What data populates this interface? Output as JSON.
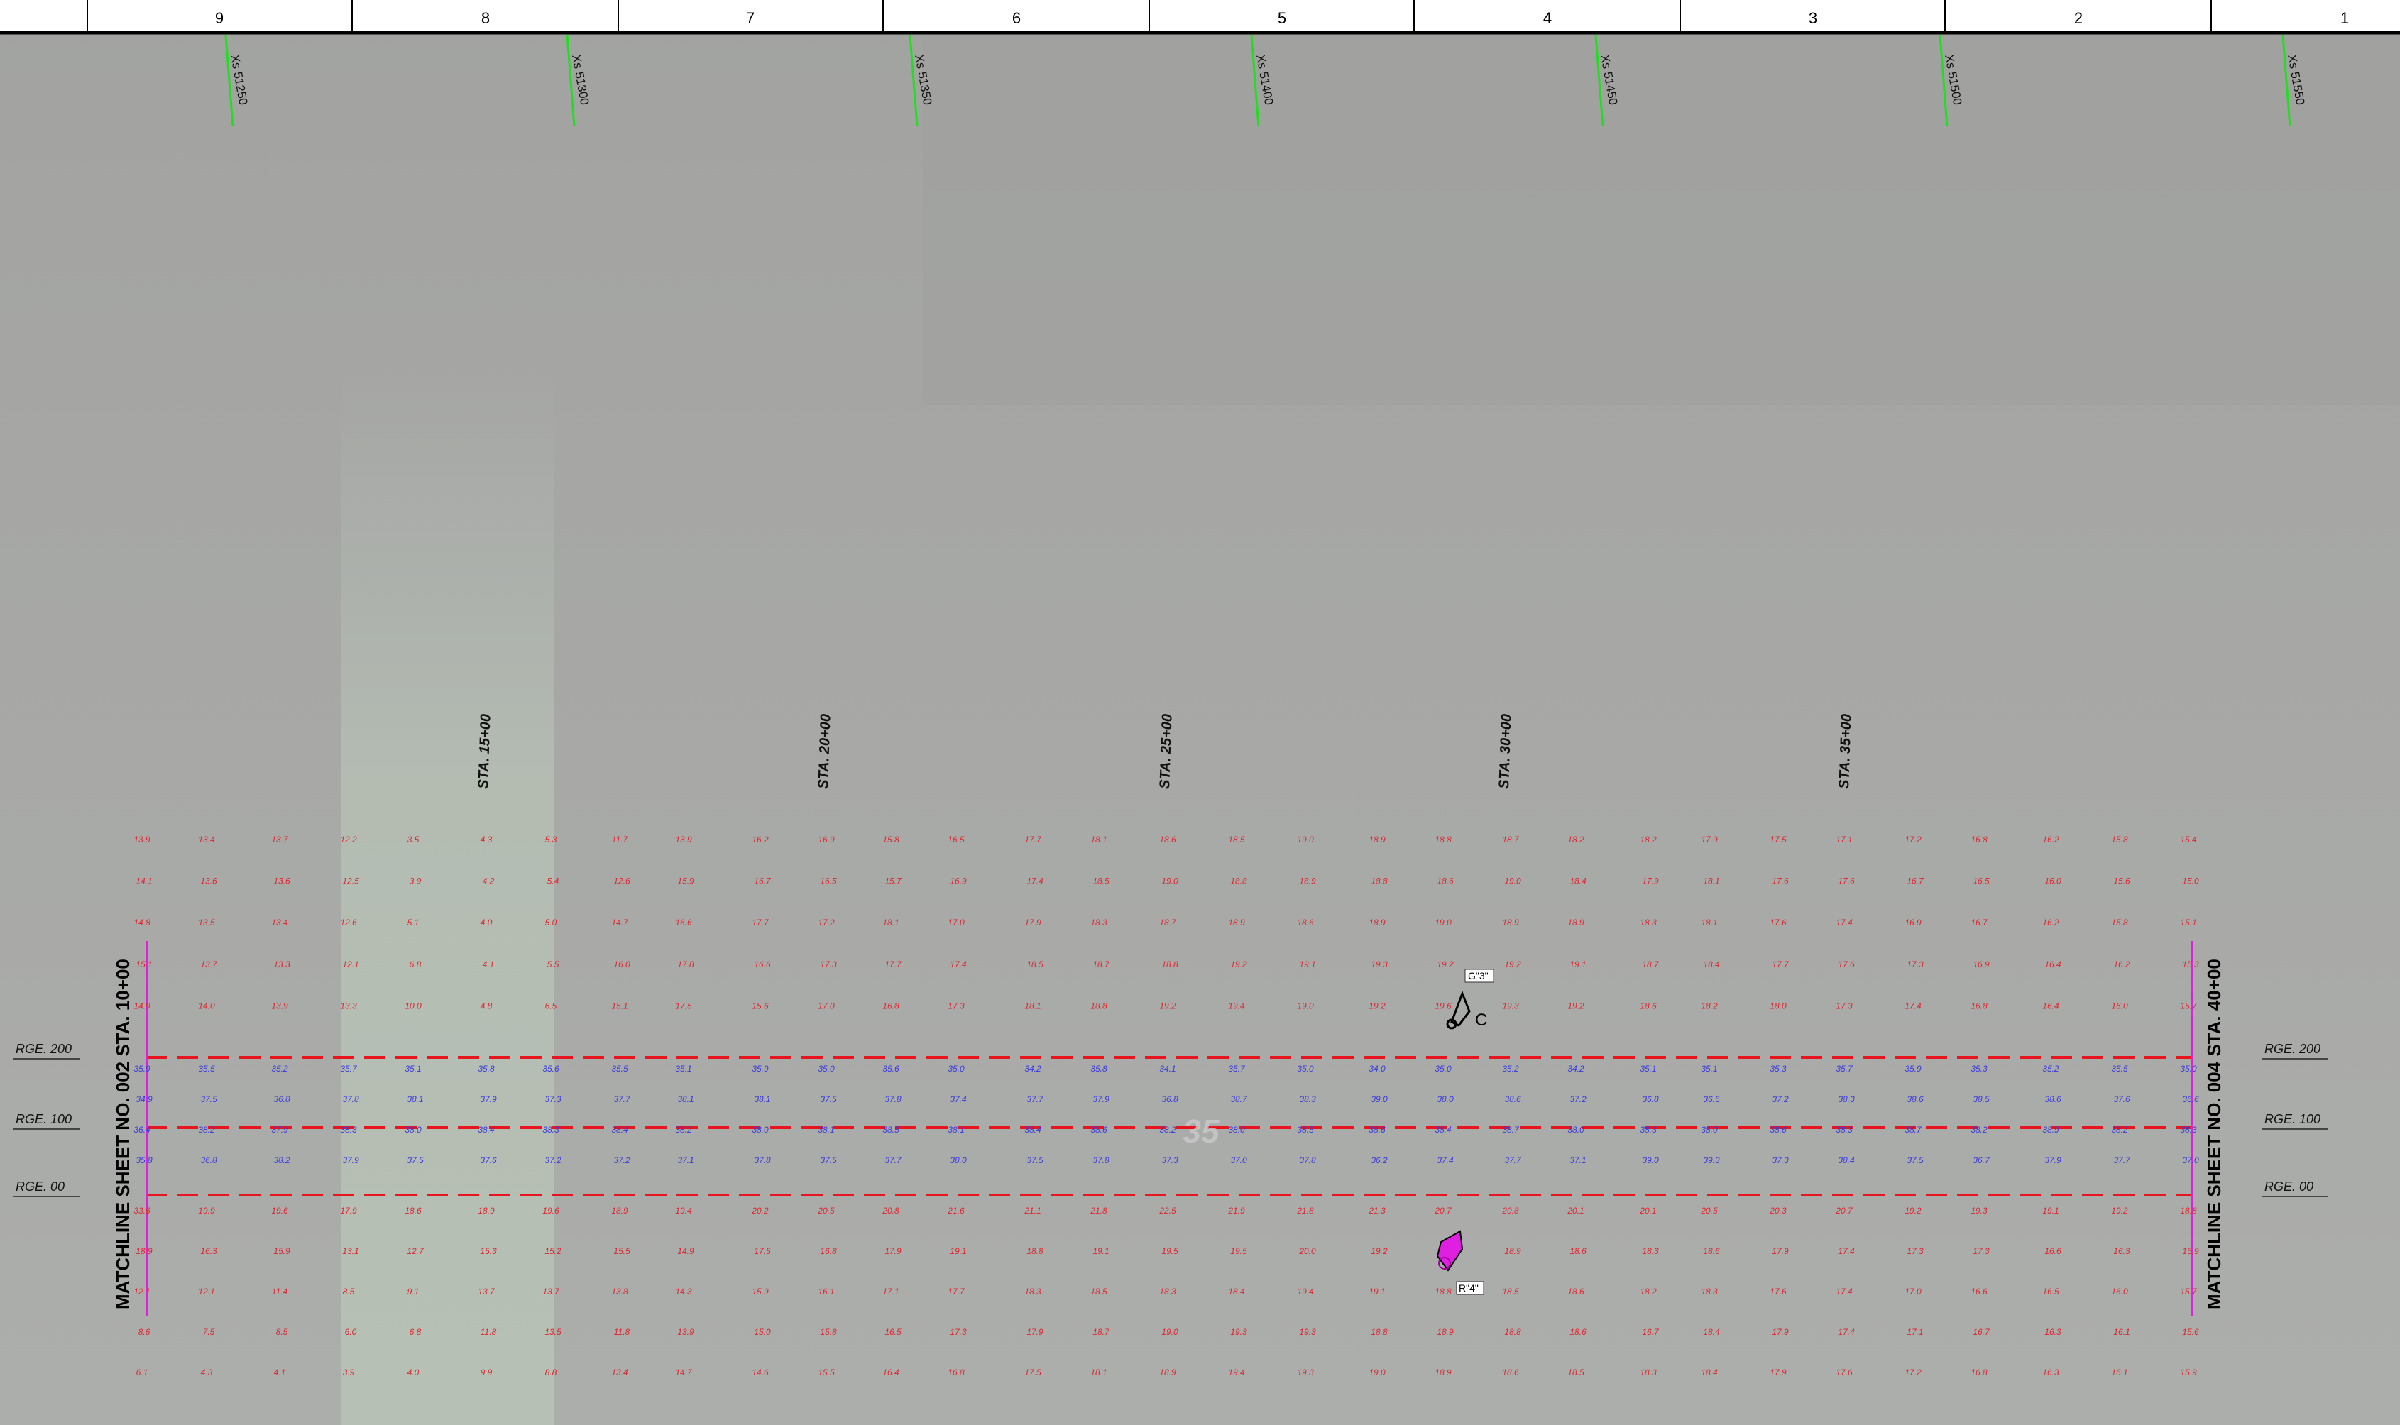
{
  "header": {
    "columns": [
      "9",
      "8",
      "7",
      "6",
      "5",
      "4",
      "3",
      "2",
      "1"
    ]
  },
  "cross_sections": [
    "Xs 51250",
    "Xs 51300",
    "Xs 51350",
    "Xs 51400",
    "Xs 51450",
    "Xs 51500",
    "Xs 51550"
  ],
  "stations": [
    "STA. 15+00",
    "STA. 20+00",
    "STA. 25+00",
    "STA. 30+00",
    "STA. 35+00"
  ],
  "ranges": [
    "RGE. 200",
    "RGE. 100",
    "RGE. 00"
  ],
  "matchlines": {
    "left": "MATCHLINE SHEET NO. 002 STA. 10+00",
    "right": "MATCHLINE SHEET NO. 004 STA. 40+00"
  },
  "annotations": {
    "g3": "G\"3\"",
    "c": "C",
    "r4": "R\"4\"",
    "watermark": "35"
  },
  "soundings": [
    {
      "top": [
        "13.9",
        "14.1",
        "14.8",
        "15.1",
        "14.9"
      ],
      "mid": [
        "35.9",
        "34.9",
        "36.4",
        "35.8"
      ],
      "bottom": [
        "33.6",
        "18.9",
        "12.1",
        "8.6",
        "6.1"
      ]
    },
    {
      "top": [
        "13.4",
        "13.6",
        "13.5",
        "13.7",
        "14.0"
      ],
      "mid": [
        "35.5",
        "37.5",
        "38.2",
        "36.8"
      ],
      "bottom": [
        "19.9",
        "16.3",
        "12.1",
        "7.5",
        "4.3"
      ]
    },
    {
      "top": [
        "13.7",
        "13.6",
        "13.4",
        "13.3",
        "13.9"
      ],
      "mid": [
        "35.2",
        "36.8",
        "37.9",
        "38.2"
      ],
      "bottom": [
        "19.6",
        "15.9",
        "11.4",
        "8.5",
        "4.1"
      ]
    },
    {
      "top": [
        "12.2",
        "12.5",
        "12.6",
        "12.1",
        "13.3"
      ],
      "mid": [
        "35.7",
        "37.8",
        "38.3",
        "37.9"
      ],
      "bottom": [
        "17.9",
        "13.1",
        "8.5",
        "6.0",
        "3.9"
      ]
    },
    {
      "top": [
        "3.5",
        "3.9",
        "5.1",
        "6.8",
        "10.0"
      ],
      "mid": [
        "35.1",
        "38.1",
        "38.0",
        "37.5"
      ],
      "bottom": [
        "18.6",
        "12.7",
        "9.1",
        "6.8",
        "4.0"
      ]
    },
    {
      "top": [
        "4.3",
        "4.2",
        "4.0",
        "4.1",
        "4.8"
      ],
      "mid": [
        "35.8",
        "37.9",
        "38.4",
        "37.6"
      ],
      "bottom": [
        "18.9",
        "15.3",
        "13.7",
        "11.8",
        "9.9"
      ]
    },
    {
      "top": [
        "5.3",
        "5.4",
        "5.0",
        "5.5",
        "6.5"
      ],
      "mid": [
        "35.6",
        "37.3",
        "38.3",
        "37.2"
      ],
      "bottom": [
        "19.6",
        "15.2",
        "13.7",
        "13.5",
        "8.8"
      ]
    },
    {
      "top": [
        "11.7",
        "12.6",
        "14.7",
        "16.0",
        "15.1"
      ],
      "mid": [
        "35.5",
        "37.7",
        "38.4",
        "37.2"
      ],
      "bottom": [
        "18.9",
        "15.5",
        "13.8",
        "11.8",
        "13.4"
      ]
    },
    {
      "top": [
        "13.9",
        "15.9",
        "16.6",
        "17.8",
        "17.5"
      ],
      "mid": [
        "35.1",
        "38.1",
        "38.2",
        "37.1"
      ],
      "bottom": [
        "19.4",
        "14.9",
        "14.3",
        "13.9",
        "14.7"
      ]
    },
    {
      "top": [
        "16.2",
        "16.7",
        "17.7",
        "16.6",
        "15.6"
      ],
      "mid": [
        "35.9",
        "38.1",
        "38.0",
        "37.8"
      ],
      "bottom": [
        "20.2",
        "17.5",
        "15.9",
        "15.0",
        "14.6"
      ]
    },
    {
      "top": [
        "16.9",
        "16.5",
        "17.2",
        "17.3",
        "17.0"
      ],
      "mid": [
        "35.0",
        "37.5",
        "38.1",
        "37.5"
      ],
      "bottom": [
        "20.5",
        "16.8",
        "16.1",
        "15.8",
        "15.5"
      ]
    },
    {
      "top": [
        "15.8",
        "15.7",
        "18.1",
        "17.7",
        "16.8"
      ],
      "mid": [
        "35.6",
        "37.8",
        "38.5",
        "37.7"
      ],
      "bottom": [
        "20.8",
        "17.9",
        "17.1",
        "16.5",
        "16.4"
      ]
    },
    {
      "top": [
        "16.5",
        "16.9",
        "17.0",
        "17.4",
        "17.3"
      ],
      "mid": [
        "35.0",
        "37.4",
        "38.1",
        "38.0"
      ],
      "bottom": [
        "21.6",
        "19.1",
        "17.7",
        "17.3",
        "16.8"
      ]
    },
    {
      "top": [
        "17.7",
        "17.4",
        "17.9",
        "18.5",
        "18.1"
      ],
      "mid": [
        "34.2",
        "37.7",
        "38.4",
        "37.5"
      ],
      "bottom": [
        "21.1",
        "18.8",
        "18.3",
        "17.9",
        "17.5"
      ]
    },
    {
      "top": [
        "18.1",
        "18.5",
        "18.3",
        "18.7",
        "18.8"
      ],
      "mid": [
        "35.8",
        "37.9",
        "38.6",
        "37.8"
      ],
      "bottom": [
        "21.8",
        "19.1",
        "18.5",
        "18.7",
        "18.1"
      ]
    },
    {
      "top": [
        "18.6",
        "19.0",
        "18.7",
        "18.8",
        "19.2"
      ],
      "mid": [
        "34.1",
        "36.8",
        "38.2",
        "37.3"
      ],
      "bottom": [
        "22.5",
        "19.5",
        "18.3",
        "19.0",
        "18.9"
      ]
    },
    {
      "top": [
        "18.5",
        "18.8",
        "18.9",
        "19.2",
        "19.4"
      ],
      "mid": [
        "35.7",
        "38.7",
        "38.0",
        "37.0"
      ],
      "bottom": [
        "21.9",
        "19.5",
        "18.4",
        "19.3",
        "19.4"
      ]
    },
    {
      "top": [
        "19.0",
        "18.9",
        "18.6",
        "19.1",
        "19.0"
      ],
      "mid": [
        "35.0",
        "38.3",
        "38.5",
        "37.8"
      ],
      "bottom": [
        "21.8",
        "20.0",
        "19.4",
        "19.3",
        "19.3"
      ]
    },
    {
      "top": [
        "18.9",
        "18.8",
        "18.9",
        "19.3",
        "19.2"
      ],
      "mid": [
        "34.0",
        "39.0",
        "38.6",
        "36.2"
      ],
      "bottom": [
        "21.3",
        "19.2",
        "19.1",
        "18.8",
        "19.0"
      ]
    },
    {
      "top": [
        "18.8",
        "18.6",
        "19.0",
        "19.2",
        "19.6"
      ],
      "mid": [
        "35.0",
        "38.0",
        "38.4",
        "37.4"
      ],
      "bottom": [
        "20.7",
        "19.2",
        "18.8",
        "18.9",
        "18.9"
      ]
    },
    {
      "top": [
        "18.7",
        "19.0",
        "18.9",
        "19.2",
        "19.3"
      ],
      "mid": [
        "35.2",
        "38.6",
        "38.7",
        "37.7"
      ],
      "bottom": [
        "20.8",
        "18.9",
        "18.5",
        "18.8",
        "18.6"
      ]
    },
    {
      "top": [
        "18.2",
        "18.4",
        "18.9",
        "19.1",
        "19.2"
      ],
      "mid": [
        "34.2",
        "37.2",
        "38.0",
        "37.1"
      ],
      "bottom": [
        "20.1",
        "18.6",
        "18.6",
        "18.6",
        "18.5"
      ]
    },
    {
      "top": [
        "18.2",
        "17.9",
        "18.3",
        "18.7",
        "18.6"
      ],
      "mid": [
        "35.1",
        "36.8",
        "38.3",
        "39.0"
      ],
      "bottom": [
        "20.1",
        "18.3",
        "18.2",
        "16.7",
        "18.3"
      ]
    },
    {
      "top": [
        "17.9",
        "18.1",
        "18.1",
        "18.4",
        "18.2"
      ],
      "mid": [
        "35.1",
        "36.5",
        "38.0",
        "39.3"
      ],
      "bottom": [
        "20.5",
        "18.6",
        "18.3",
        "18.4",
        "18.4"
      ]
    },
    {
      "top": [
        "17.5",
        "17.6",
        "17.6",
        "17.7",
        "18.0"
      ],
      "mid": [
        "35.3",
        "37.2",
        "38.6",
        "37.3"
      ],
      "bottom": [
        "20.3",
        "17.9",
        "17.6",
        "17.9",
        "17.9"
      ]
    },
    {
      "top": [
        "17.1",
        "17.6",
        "17.4",
        "17.6",
        "17.3"
      ],
      "mid": [
        "35.7",
        "38.3",
        "38.3",
        "38.4"
      ],
      "bottom": [
        "20.7",
        "17.4",
        "17.4",
        "17.4",
        "17.6"
      ]
    },
    {
      "top": [
        "17.2",
        "16.7",
        "16.9",
        "17.3",
        "17.4"
      ],
      "mid": [
        "35.9",
        "38.6",
        "38.7",
        "37.5"
      ],
      "bottom": [
        "19.2",
        "17.3",
        "17.0",
        "17.1",
        "17.2"
      ]
    },
    {
      "top": [
        "16.8",
        "16.5",
        "16.7",
        "16.9",
        "16.8"
      ],
      "mid": [
        "35.3",
        "38.5",
        "38.2",
        "36.7"
      ],
      "bottom": [
        "19.3",
        "17.3",
        "16.6",
        "16.7",
        "16.8"
      ]
    },
    {
      "top": [
        "16.2",
        "16.0",
        "16.2",
        "16.4",
        "16.4"
      ],
      "mid": [
        "35.2",
        "38.6",
        "38.9",
        "37.9"
      ],
      "bottom": [
        "19.1",
        "16.6",
        "16.5",
        "16.3",
        "16.3"
      ]
    },
    {
      "top": [
        "15.8",
        "15.6",
        "15.8",
        "16.2",
        "16.0"
      ],
      "mid": [
        "35.5",
        "37.6",
        "38.2",
        "37.7"
      ],
      "bottom": [
        "19.2",
        "16.3",
        "16.0",
        "16.1",
        "16.1"
      ]
    },
    {
      "top": [
        "15.4",
        "15.0",
        "15.1",
        "15.3",
        "15.7"
      ],
      "mid": [
        "35.0",
        "36.6",
        "38.3",
        "37.0"
      ],
      "bottom": [
        "18.8",
        "15.9",
        "15.7",
        "15.6",
        "15.9"
      ]
    }
  ]
}
